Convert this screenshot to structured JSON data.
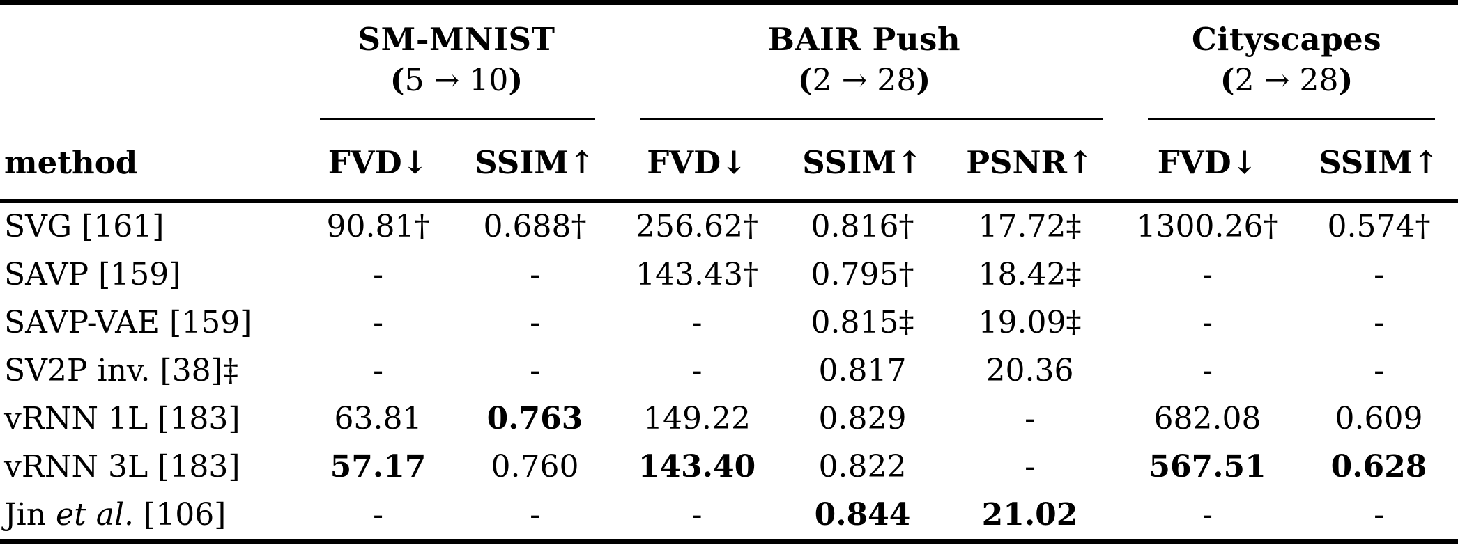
{
  "table": {
    "method_header": "method",
    "groups": [
      {
        "name": "SM-MNIST",
        "range_open": "(",
        "range_body": "5 → 10",
        "range_close": ")"
      },
      {
        "name": "BAIR Push",
        "range_open": "(",
        "range_body": "2 → 28",
        "range_close": ")"
      },
      {
        "name": "Cityscapes",
        "range_open": "(",
        "range_body": "2 → 28",
        "range_close": ")"
      }
    ],
    "columns": [
      "FVD↓",
      "SSIM↑",
      "FVD↓",
      "SSIM↑",
      "PSNR↑",
      "FVD↓",
      "SSIM↑"
    ],
    "rows": [
      {
        "method": [
          {
            "t": "SVG [161]"
          }
        ],
        "cells": [
          {
            "t": "90.81†"
          },
          {
            "t": "0.688†"
          },
          {
            "t": "256.62†"
          },
          {
            "t": "0.816†"
          },
          {
            "t": "17.72‡"
          },
          {
            "t": "1300.26†"
          },
          {
            "t": "0.574†"
          }
        ]
      },
      {
        "method": [
          {
            "t": "SAVP [159]"
          }
        ],
        "cells": [
          {
            "t": "-"
          },
          {
            "t": "-"
          },
          {
            "t": "143.43†"
          },
          {
            "t": "0.795†"
          },
          {
            "t": "18.42‡"
          },
          {
            "t": "-"
          },
          {
            "t": "-"
          }
        ]
      },
      {
        "method": [
          {
            "t": "SAVP-VAE [159]"
          }
        ],
        "cells": [
          {
            "t": "-"
          },
          {
            "t": "-"
          },
          {
            "t": "-"
          },
          {
            "t": "0.815‡"
          },
          {
            "t": "19.09‡"
          },
          {
            "t": "-"
          },
          {
            "t": "-"
          }
        ]
      },
      {
        "method": [
          {
            "t": "SV2P inv. [38]‡"
          }
        ],
        "cells": [
          {
            "t": "-"
          },
          {
            "t": "-"
          },
          {
            "t": "-"
          },
          {
            "t": "0.817"
          },
          {
            "t": "20.36"
          },
          {
            "t": "-"
          },
          {
            "t": "-"
          }
        ]
      },
      {
        "method": [
          {
            "t": "vRNN 1L [183]"
          }
        ],
        "cells": [
          {
            "t": "63.81"
          },
          {
            "t": "0.763",
            "b": true
          },
          {
            "t": "149.22"
          },
          {
            "t": "0.829"
          },
          {
            "t": "-"
          },
          {
            "t": "682.08"
          },
          {
            "t": "0.609"
          }
        ]
      },
      {
        "method": [
          {
            "t": "vRNN 3L [183]"
          }
        ],
        "cells": [
          {
            "t": "57.17",
            "b": true
          },
          {
            "t": "0.760"
          },
          {
            "t": "143.40",
            "b": true
          },
          {
            "t": "0.822"
          },
          {
            "t": "-"
          },
          {
            "t": "567.51",
            "b": true
          },
          {
            "t": "0.628",
            "b": true
          }
        ]
      },
      {
        "method": [
          {
            "t": "Jin "
          },
          {
            "t": "et al.",
            "i": true
          },
          {
            "t": " [106]"
          }
        ],
        "cells": [
          {
            "t": "-"
          },
          {
            "t": "-"
          },
          {
            "t": "-"
          },
          {
            "t": "0.844",
            "b": true
          },
          {
            "t": "21.02",
            "b": true
          },
          {
            "t": "-"
          },
          {
            "t": "-"
          }
        ]
      }
    ]
  }
}
